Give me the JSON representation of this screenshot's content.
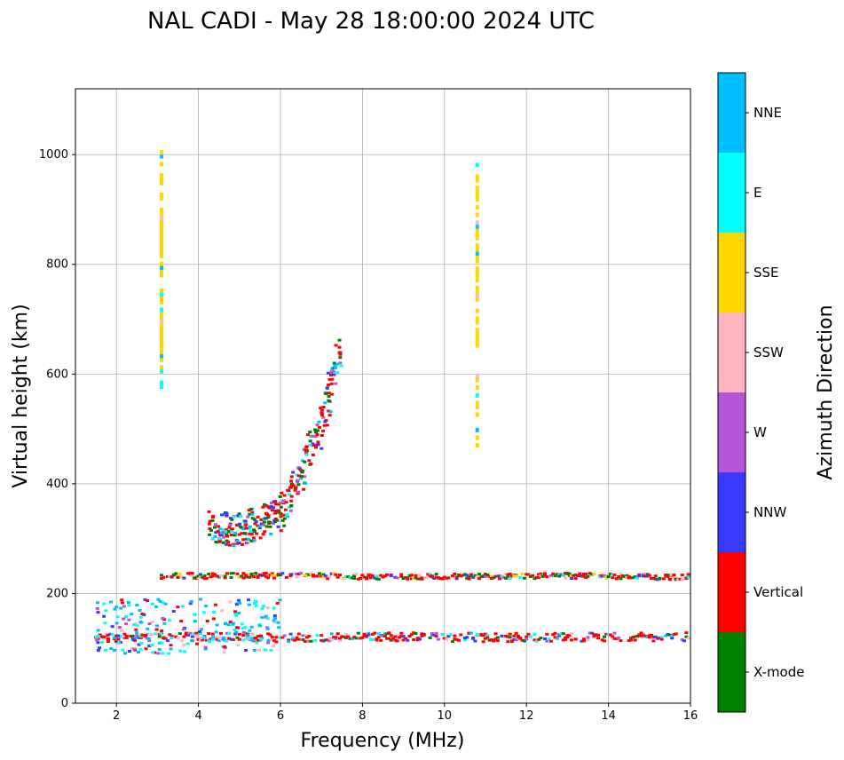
{
  "chart_data": {
    "type": "scatter",
    "title": "NAL CADI - May 28 18:00:00 2024 UTC",
    "xlabel": "Frequency (MHz)",
    "ylabel": "Virtual height (km)",
    "xlim": [
      1,
      16
    ],
    "ylim": [
      0,
      1120
    ],
    "xticks": [
      2,
      4,
      6,
      8,
      10,
      12,
      14,
      16
    ],
    "yticks": [
      0,
      200,
      400,
      600,
      800,
      1000
    ],
    "grid": true,
    "colorbar": {
      "title": "Azimuth Direction",
      "categories": [
        {
          "name": "X-mode",
          "color": "#008000"
        },
        {
          "name": "Vertical",
          "color": "#ff0000"
        },
        {
          "name": "NNW",
          "color": "#3a3aff"
        },
        {
          "name": "W",
          "color": "#b655d8"
        },
        {
          "name": "SSW",
          "color": "#ffb6c1"
        },
        {
          "name": "SSE",
          "color": "#ffd700"
        },
        {
          "name": "E",
          "color": "#00ffff"
        },
        {
          "name": "NNE",
          "color": "#00bfff"
        }
      ]
    },
    "traces": [
      {
        "name": "F-region trace",
        "x": [
          1.5,
          2.0,
          2.5,
          3.0,
          3.5,
          4.0,
          4.5,
          5.0,
          5.5,
          6.0,
          6.5,
          7.0,
          7.5,
          8.0,
          9.0,
          10.0,
          11.0,
          12.0,
          13.0,
          14.0,
          15.0,
          16.0
        ],
        "y": [
          230,
          230,
          230,
          232,
          233,
          232,
          232,
          233,
          233,
          232,
          233,
          232,
          232,
          231,
          230,
          231,
          231,
          232,
          232,
          232,
          230,
          230
        ]
      },
      {
        "name": "E-region trace",
        "x": [
          2.0,
          2.5,
          3.0,
          3.5,
          4.0,
          4.5,
          5.0,
          5.5,
          6.0,
          6.5,
          7.0,
          8.0,
          9.0,
          10.0,
          11.0,
          12.0,
          13.0,
          14.0,
          15.0,
          16.0
        ],
        "y": [
          118,
          120,
          121,
          121,
          121,
          120,
          120,
          120,
          119,
          120,
          121,
          121,
          121,
          120,
          120,
          120,
          120,
          120,
          121,
          121
        ]
      },
      {
        "name": "F2 spread",
        "x": [
          4.5,
          5.0,
          5.5,
          6.0,
          6.3,
          6.5,
          6.7,
          7.0,
          7.2,
          7.4
        ],
        "y": [
          320,
          315,
          330,
          345,
          390,
          420,
          460,
          500,
          560,
          640
        ]
      },
      {
        "name": "Vertical column 3.1",
        "x": [
          3.1
        ],
        "y": [
          1010
        ]
      },
      {
        "name": "Vertical column 10.8",
        "x": [
          10.8
        ],
        "y": [
          995
        ]
      }
    ]
  }
}
